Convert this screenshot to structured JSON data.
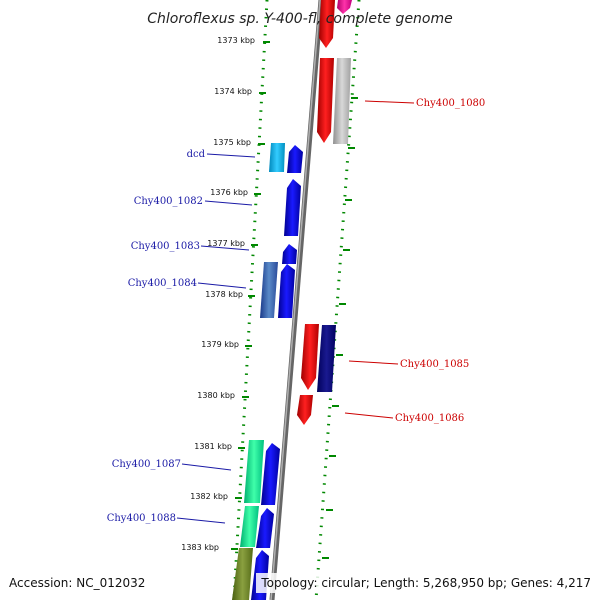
{
  "title": "Chloroflexus sp. Y-400-fl, complete genome",
  "ticks": [
    "1373 kbp",
    "1374 kbp",
    "1375 kbp",
    "1376 kbp",
    "1377 kbp",
    "1378 kbp",
    "1379 kbp",
    "1380 kbp",
    "1381 kbp",
    "1382 kbp",
    "1383 kbp"
  ],
  "genes_left": [
    "dcd",
    "Chy400_1082",
    "Chy400_1083",
    "Chy400_1084",
    "Chy400_1087",
    "Chy400_1088"
  ],
  "genes_right": [
    "Chy400_1080",
    "Chy400_1085",
    "Chy400_1086"
  ],
  "footer": {
    "accession": "Accession: NC_012032",
    "summary": "Topology: circular; Length: 5,268,950 bp; Genes: 4,217"
  },
  "colors": {
    "backbone": "#888888",
    "tick_green": "#008800",
    "reverse_strand": "#ff0000",
    "forward_strand": "#0000ff",
    "label_left": "#1a1aa6",
    "label_right": "#cc0000"
  }
}
